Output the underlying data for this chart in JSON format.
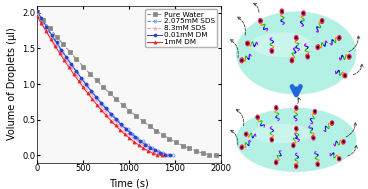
{
  "xlabel": "Time (s)",
  "ylabel": "Volume of Droplets (µl)",
  "xlim": [
    0,
    2000
  ],
  "ylim": [
    -0.1,
    2.1
  ],
  "yticks": [
    0.0,
    0.5,
    1.0,
    1.5,
    2.0
  ],
  "xticks": [
    0,
    500,
    1000,
    1500,
    2000
  ],
  "series": [
    {
      "label": "Pure Water",
      "color": "#888888",
      "marker": "s",
      "linestyle": "--",
      "fillstyle": "full",
      "t_end": 1950,
      "power": 1.6,
      "v0": 2.01
    },
    {
      "label": "2.075mM SDS",
      "color": "#6688ff",
      "marker": "o",
      "linestyle": "--",
      "fillstyle": "none",
      "t_end": 1480,
      "power": 1.55,
      "v0": 2.0
    },
    {
      "label": "8.3mM SDS",
      "color": "#ff99bb",
      "marker": "^",
      "linestyle": "--",
      "fillstyle": "none",
      "t_end": 1420,
      "power": 1.55,
      "v0": 1.97
    },
    {
      "label": "0.01mM DM",
      "color": "#2244cc",
      "marker": "o",
      "linestyle": "-",
      "fillstyle": "full",
      "t_end": 1450,
      "power": 1.55,
      "v0": 2.03
    },
    {
      "label": "1mM DM",
      "color": "#ee2222",
      "marker": "^",
      "linestyle": "-",
      "fillstyle": "full",
      "t_end": 1360,
      "power": 1.55,
      "v0": 1.96
    }
  ],
  "fig_bg": "#ffffff",
  "legend_fontsize": 5.2,
  "axis_fontsize": 7,
  "tick_fontsize": 6,
  "marker_size": 2.2,
  "linewidth": 0.7,
  "droplet_color": "#aaf0e0",
  "droplet_edge": "#60d0c0",
  "arrow_color": "#2266dd",
  "molecule_head_color": "#ff2266",
  "molecule_head_black": "#111111"
}
